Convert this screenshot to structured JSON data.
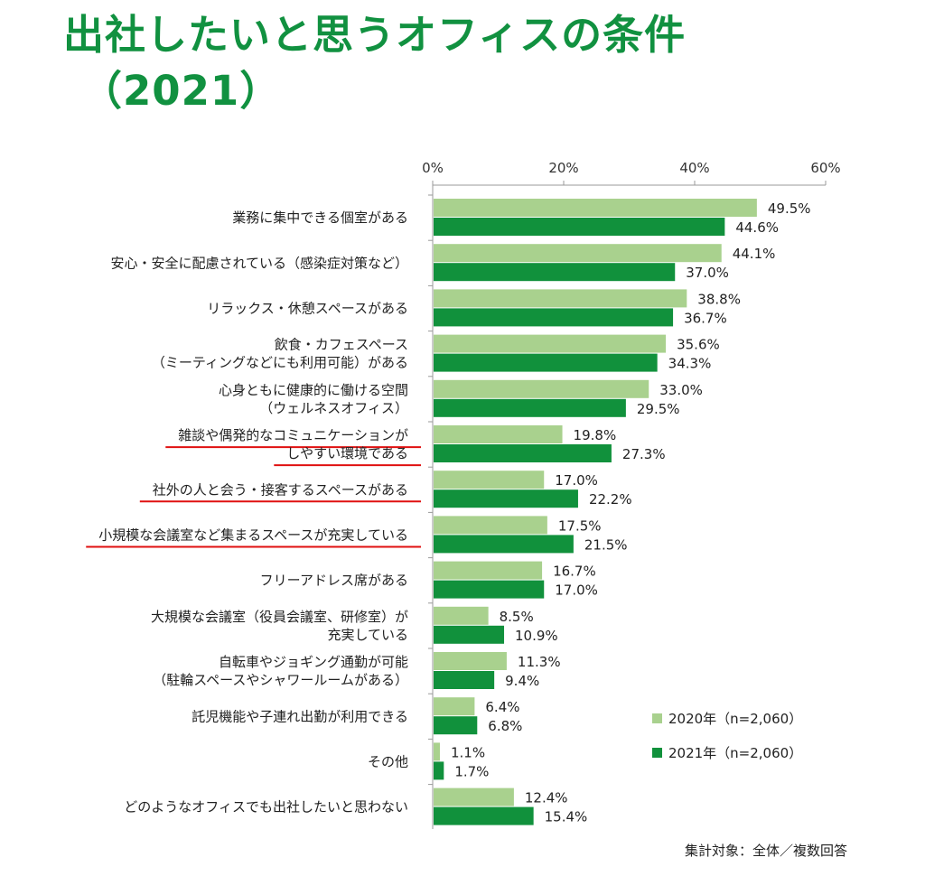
{
  "title": {
    "line1": "出社したいと思うオフィスの条件",
    "line2": "（2021）"
  },
  "colors": {
    "s2020": "#a9d18e",
    "s2021": "#11913c",
    "title": "#119140",
    "highlight": "#e01010"
  },
  "footnote": "集計対象：全体／複数回答",
  "chart_data": {
    "type": "bar",
    "orientation": "horizontal",
    "title": "出社したいと思うオフィスの条件（2021）",
    "xlim": [
      0,
      60
    ],
    "ticks": [
      "0%",
      "20%",
      "40%",
      "60%"
    ],
    "tick_values": [
      0,
      20,
      40,
      60
    ],
    "legend_position": "bottom-right",
    "categories": [
      [
        "業務に集中できる個室がある"
      ],
      [
        "安心・安全に配慮されている（感染症対策など）"
      ],
      [
        "リラックス・休憩スペースがある"
      ],
      [
        "飲食・カフェスペース",
        "（ミーティングなどにも利用可能）がある"
      ],
      [
        "心身ともに健康的に働ける空間",
        "（ウェルネスオフィス）"
      ],
      [
        "雑談や偶発的なコミュニケーションが",
        "しやすい環境である"
      ],
      [
        "社外の人と会う・接客するスペースがある"
      ],
      [
        "小規模な会議室など集まるスペースが充実している"
      ],
      [
        "フリーアドレス席がある"
      ],
      [
        "大規模な会議室（役員会議室、研修室）が",
        "充実している"
      ],
      [
        "自転車やジョギング通勤が可能",
        "（駐輪スペースやシャワールームがある）"
      ],
      [
        "託児機能や子連れ出勤が利用できる"
      ],
      [
        "その他"
      ],
      [
        "どのようなオフィスでも出社したいと思わない"
      ]
    ],
    "highlighted": [
      5,
      6,
      7
    ],
    "series": [
      {
        "name": "2020年（n=2,060）",
        "values": [
          49.5,
          44.1,
          38.8,
          35.6,
          33.0,
          19.8,
          17.0,
          17.5,
          16.7,
          8.5,
          11.3,
          6.4,
          1.1,
          12.4
        ]
      },
      {
        "name": "2021年（n=2,060）",
        "values": [
          44.6,
          37.0,
          36.7,
          34.3,
          29.5,
          27.3,
          22.2,
          21.5,
          17.0,
          10.9,
          9.4,
          6.8,
          1.7,
          15.4
        ]
      }
    ],
    "value_labels": [
      [
        "49.5%",
        "44.1%",
        "38.8%",
        "35.6%",
        "33.0%",
        "19.8%",
        "17.0%",
        "17.5%",
        "16.7%",
        "8.5%",
        "11.3%",
        "6.4%",
        "1.1%",
        "12.4%"
      ],
      [
        "44.6%",
        "37.0%",
        "36.7%",
        "34.3%",
        "29.5%",
        "27.3%",
        "22.2%",
        "21.5%",
        "17.0%",
        "10.9%",
        "9.4%",
        "6.8%",
        "1.7%",
        "15.4%"
      ]
    ]
  }
}
